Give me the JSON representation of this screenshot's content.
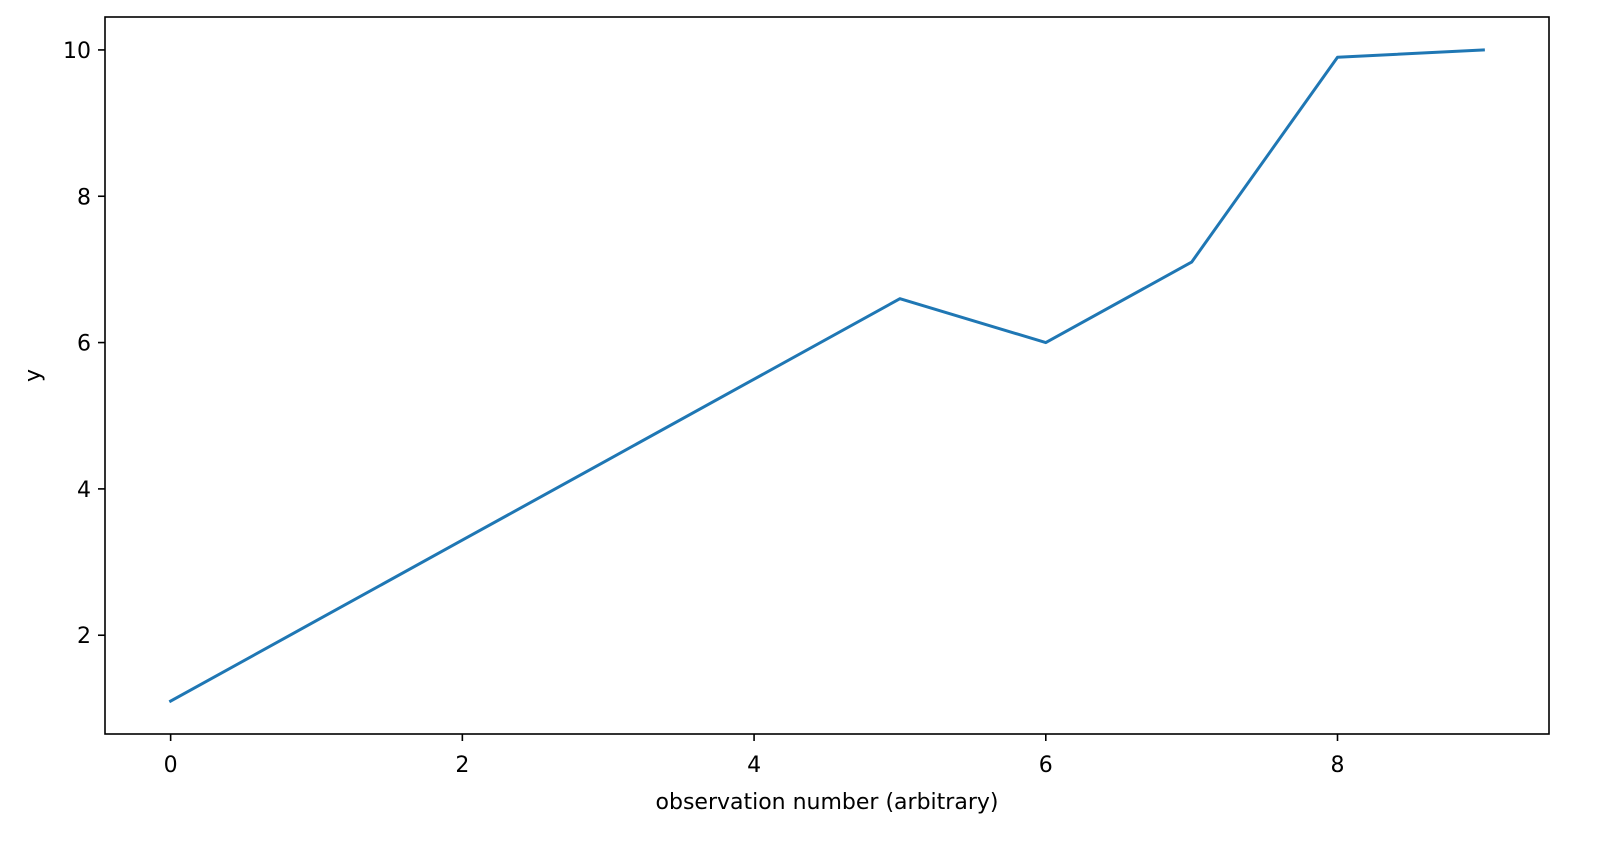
{
  "chart_data": {
    "type": "line",
    "title": "",
    "xlabel": "observation number (arbitrary)",
    "ylabel": "y",
    "xlim": [
      -0.45,
      9.45
    ],
    "ylim": [
      0.65,
      10.45
    ],
    "x_ticks": [
      0,
      2,
      4,
      6,
      8
    ],
    "y_ticks": [
      2,
      4,
      6,
      8,
      10
    ],
    "grid": false,
    "legend": "none",
    "series": [
      {
        "color": "#1f77b4",
        "x": [
          0,
          1,
          2,
          3,
          4,
          5,
          6,
          7,
          8,
          9
        ],
        "y": [
          1.1,
          2.2,
          3.3,
          4.4,
          5.5,
          6.6,
          6.0,
          7.1,
          9.9,
          10.0
        ]
      }
    ]
  }
}
